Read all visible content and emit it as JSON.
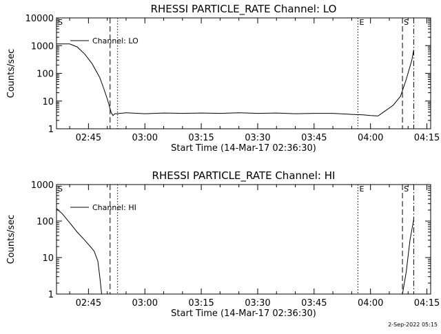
{
  "footer": {
    "date": "2-Sep-2022 05:15"
  },
  "chart_data": [
    {
      "type": "line",
      "title": "RHESSI PARTICLE_RATE Channel: LO",
      "xlabel": "Start Time (14-Mar-17 02:36:30)",
      "ylabel": "Counts/sec",
      "y_scale": "log",
      "ylim": [
        1,
        10000
      ],
      "xlim": [
        "02:36:30",
        "04:16:00"
      ],
      "x_ticks": [
        "02:45",
        "03:00",
        "03:15",
        "03:30",
        "03:45",
        "04:00",
        "04:15"
      ],
      "y_ticks": [
        "1",
        "10",
        "100",
        "1000",
        "10000"
      ],
      "legend": {
        "position": "top-left",
        "entries": [
          "Channel: LO"
        ]
      },
      "series": [
        {
          "name": "Channel: LO",
          "x": [
            "02:36:30",
            "02:40:00",
            "02:42:00",
            "02:44:00",
            "02:46:00",
            "02:48:00",
            "02:49:00",
            "02:50:00",
            "02:50:30",
            "02:51:00",
            "02:51:30",
            "02:52:00",
            "02:52:30",
            "02:55:00",
            "03:00:00",
            "03:05:00",
            "03:10:00",
            "03:15:00",
            "03:20:00",
            "03:25:00",
            "03:30:00",
            "03:35:00",
            "03:40:00",
            "03:45:00",
            "03:50:00",
            "03:55:00",
            "03:58:00",
            "04:00:00",
            "04:02:00",
            "04:04:00",
            "04:06:00",
            "04:08:00",
            "04:09:30",
            "04:11:00",
            "04:11:30"
          ],
          "values": [
            1150,
            1150,
            900,
            500,
            220,
            70,
            30,
            12,
            7,
            4,
            3,
            3.5,
            3.5,
            3.8,
            3.5,
            3.7,
            3.6,
            3.7,
            3.6,
            3.8,
            3.6,
            3.7,
            3.5,
            3.6,
            3.6,
            3.3,
            3.2,
            3.0,
            2.9,
            4.5,
            7,
            15,
            60,
            300,
            700
          ]
        }
      ],
      "markers": [
        {
          "label": "S",
          "time": "02:36:30",
          "style": "solid"
        },
        {
          "label": "",
          "time": "02:50:45",
          "style": "dashed"
        },
        {
          "label": "",
          "time": "02:52:45",
          "style": "dotted"
        },
        {
          "label": "E",
          "time": "03:56:40",
          "style": "dotted"
        },
        {
          "label": "S",
          "time": "04:08:30",
          "style": "dashed"
        },
        {
          "label": "",
          "time": "04:11:30",
          "style": "dashdot"
        }
      ]
    },
    {
      "type": "line",
      "title": "RHESSI PARTICLE_RATE Channel: HI",
      "xlabel": "Start Time (14-Mar-17 02:36:30)",
      "ylabel": "Counts/sec",
      "y_scale": "log",
      "ylim": [
        1,
        1000
      ],
      "xlim": [
        "02:36:30",
        "04:16:00"
      ],
      "x_ticks": [
        "02:45",
        "03:00",
        "03:15",
        "03:30",
        "03:45",
        "04:00",
        "04:15"
      ],
      "y_ticks": [
        "1",
        "10",
        "100",
        "1000"
      ],
      "legend": {
        "position": "top-left",
        "entries": [
          "Channel: HI"
        ]
      },
      "series": [
        {
          "name": "Channel: HI",
          "x": [
            "02:36:30",
            "02:38:00",
            "02:40:00",
            "02:42:00",
            "02:44:00",
            "02:45:30",
            "02:46:30",
            "02:47:30",
            "02:48:00",
            "02:48:30"
          ],
          "values": [
            220,
            160,
            90,
            50,
            30,
            20,
            15,
            8,
            3,
            1
          ],
          "extra_x": [
            "04:08:30",
            "04:09:30",
            "04:10:30",
            "04:11:30"
          ],
          "extra_values": [
            1,
            4,
            30,
            110
          ]
        }
      ],
      "markers": [
        {
          "label": "S",
          "time": "02:36:30",
          "style": "solid"
        },
        {
          "label": "",
          "time": "02:50:45",
          "style": "dashed"
        },
        {
          "label": "",
          "time": "02:52:45",
          "style": "dotted"
        },
        {
          "label": "E",
          "time": "03:56:40",
          "style": "dotted"
        },
        {
          "label": "S",
          "time": "04:08:30",
          "style": "dashed"
        },
        {
          "label": "",
          "time": "04:11:30",
          "style": "dashdot"
        }
      ]
    }
  ]
}
